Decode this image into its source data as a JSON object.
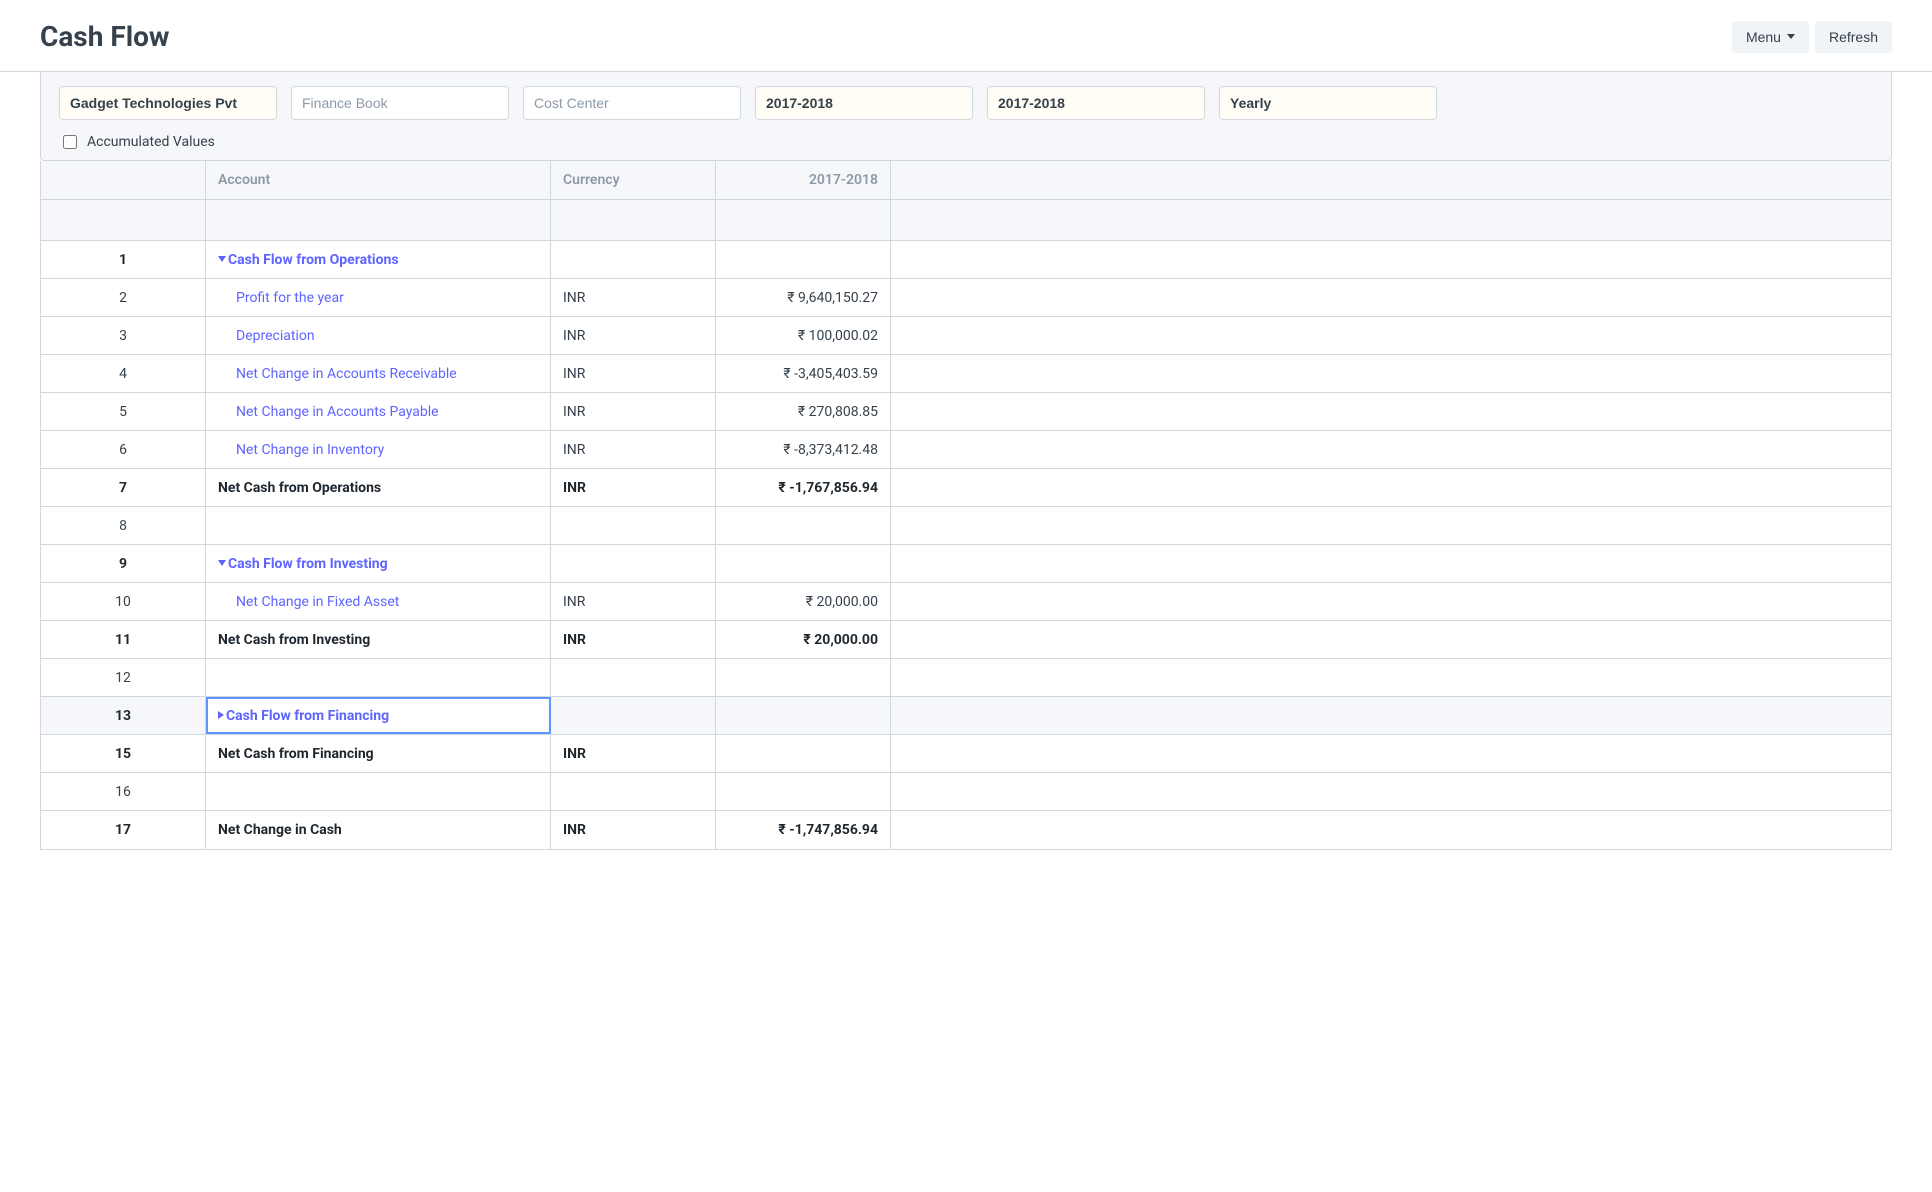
{
  "header": {
    "title": "Cash Flow",
    "menu_label": "Menu",
    "refresh_label": "Refresh"
  },
  "filters": {
    "company": "Gadget Technologies Pvt",
    "finance_book_placeholder": "Finance Book",
    "cost_center_placeholder": "Cost Center",
    "from_fiscal_year": "2017-2018",
    "to_fiscal_year": "2017-2018",
    "periodicity": "Yearly",
    "accumulated_label": "Accumulated Values"
  },
  "grid": {
    "columns": {
      "account": "Account",
      "currency": "Currency",
      "period": "2017-2018"
    },
    "rows": [
      {
        "idx": "1",
        "account": "Cash Flow from Operations",
        "currency": "",
        "amount": "",
        "bold": true,
        "link": true,
        "expand": "down",
        "indent": 0
      },
      {
        "idx": "2",
        "account": "Profit for the year",
        "currency": "INR",
        "amount": "₹ 9,640,150.27",
        "bold": false,
        "link": true,
        "indent": 1
      },
      {
        "idx": "3",
        "account": "Depreciation",
        "currency": "INR",
        "amount": "₹ 100,000.02",
        "bold": false,
        "link": true,
        "indent": 1
      },
      {
        "idx": "4",
        "account": "Net Change in Accounts Receivable",
        "currency": "INR",
        "amount": "₹ -3,405,403.59",
        "bold": false,
        "link": true,
        "indent": 1
      },
      {
        "idx": "5",
        "account": "Net Change in Accounts Payable",
        "currency": "INR",
        "amount": "₹ 270,808.85",
        "bold": false,
        "link": true,
        "indent": 1
      },
      {
        "idx": "6",
        "account": "Net Change in Inventory",
        "currency": "INR",
        "amount": "₹ -8,373,412.48",
        "bold": false,
        "link": true,
        "indent": 1
      },
      {
        "idx": "7",
        "account": "Net Cash from Operations",
        "currency": "INR",
        "amount": "₹ -1,767,856.94",
        "bold": true,
        "link": false,
        "indent": 0
      },
      {
        "idx": "8",
        "account": "",
        "currency": "",
        "amount": "",
        "bold": false,
        "link": false,
        "indent": 0
      },
      {
        "idx": "9",
        "account": "Cash Flow from Investing",
        "currency": "",
        "amount": "",
        "bold": true,
        "link": true,
        "expand": "down",
        "indent": 0
      },
      {
        "idx": "10",
        "account": "Net Change in Fixed Asset",
        "currency": "INR",
        "amount": "₹ 20,000.00",
        "bold": false,
        "link": true,
        "indent": 1
      },
      {
        "idx": "11",
        "account": "Net Cash from Investing",
        "currency": "INR",
        "amount": "₹ 20,000.00",
        "bold": true,
        "link": false,
        "indent": 0
      },
      {
        "idx": "12",
        "account": "",
        "currency": "",
        "amount": "",
        "bold": false,
        "link": false,
        "indent": 0
      },
      {
        "idx": "13",
        "account": "Cash Flow from Financing",
        "currency": "",
        "amount": "",
        "bold": true,
        "link": true,
        "expand": "right",
        "indent": 0,
        "selected": true
      },
      {
        "idx": "15",
        "account": "Net Cash from Financing",
        "currency": "INR",
        "amount": "",
        "bold": true,
        "link": false,
        "indent": 0
      },
      {
        "idx": "16",
        "account": "",
        "currency": "",
        "amount": "",
        "bold": false,
        "link": false,
        "indent": 0
      },
      {
        "idx": "17",
        "account": "Net Change in Cash",
        "currency": "INR",
        "amount": "₹ -1,747,856.94",
        "bold": true,
        "link": false,
        "indent": 0
      }
    ]
  },
  "colors": {
    "border": "#d1d8dd",
    "header_bg": "#f5f7fa",
    "text": "#36414c",
    "muted": "#8d99a6",
    "link": "#5e64ff",
    "selection": "#5e96ff",
    "highlight_bg": "#fffdf5"
  }
}
